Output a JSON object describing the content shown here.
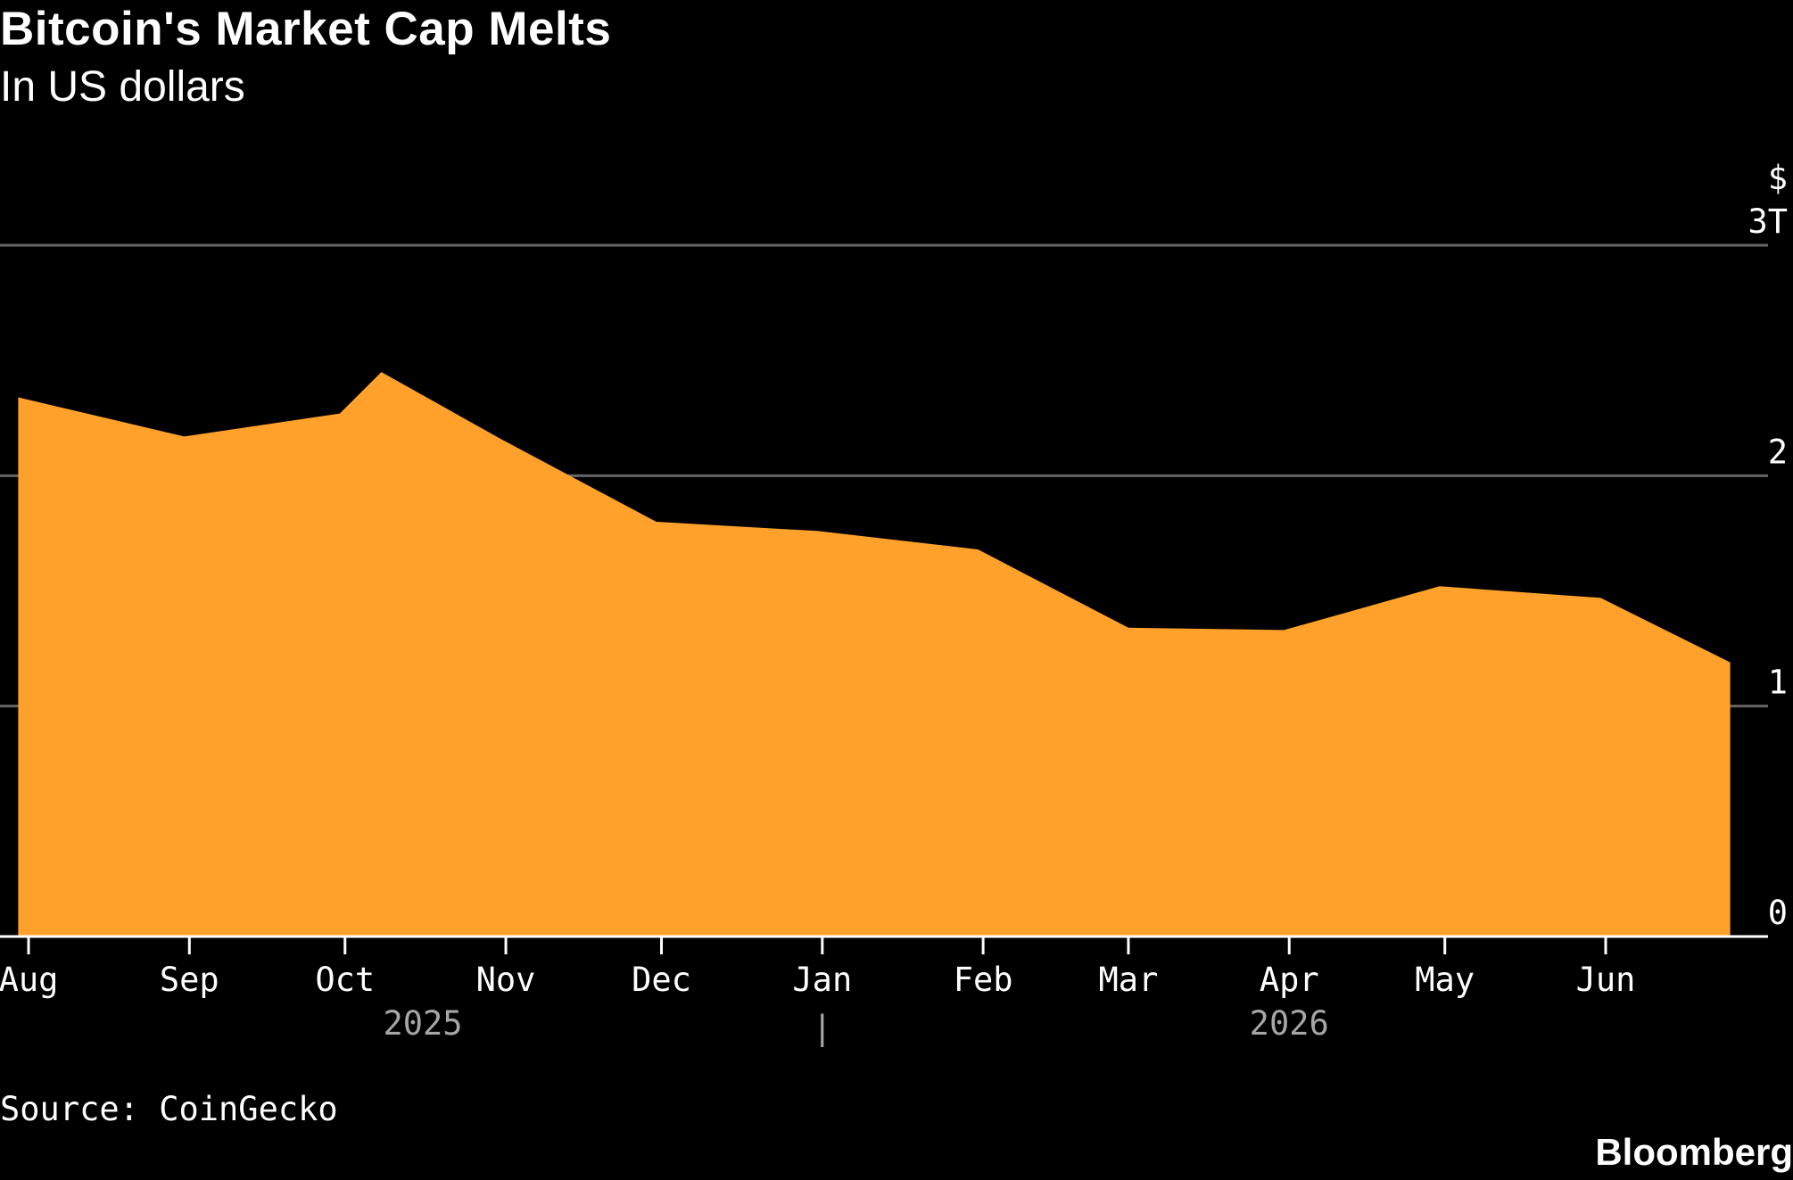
{
  "title": "Bitcoin's Market Cap Melts",
  "subtitle": "In US dollars",
  "source": "Source: CoinGecko",
  "brand": "Bloomberg",
  "colors": {
    "background": "#000000",
    "area": "#FFA12B",
    "grid": "#666666",
    "axis": "#FFFFFF",
    "year_label": "#A6A6A6"
  },
  "chart_data": {
    "type": "area",
    "title": "Bitcoin's Market Cap Melts",
    "subtitle": "In US dollars",
    "ylabel": "",
    "y_unit": "$",
    "y_axis_position": "right",
    "ylim": [
      0,
      3
    ],
    "yticks": [
      {
        "value": 0,
        "label": "0"
      },
      {
        "value": 1,
        "label": "1"
      },
      {
        "value": 2,
        "label": "2"
      },
      {
        "value": 3,
        "label": "3T"
      }
    ],
    "grid": true,
    "legend": "none",
    "x_ticks": [
      {
        "date": "2025-08-01",
        "label": "Aug"
      },
      {
        "date": "2025-09-01",
        "label": "Sep"
      },
      {
        "date": "2025-10-01",
        "label": "Oct"
      },
      {
        "date": "2025-11-01",
        "label": "Nov"
      },
      {
        "date": "2025-12-01",
        "label": "Dec"
      },
      {
        "date": "2026-01-01",
        "label": "Jan"
      },
      {
        "date": "2026-02-01",
        "label": "Feb"
      },
      {
        "date": "2026-03-01",
        "label": "Mar"
      },
      {
        "date": "2026-04-01",
        "label": "Apr"
      },
      {
        "date": "2026-05-01",
        "label": "May"
      },
      {
        "date": "2026-06-01",
        "label": "Jun"
      }
    ],
    "year_labels": [
      {
        "label": "2025",
        "center_date": "2025-10-16"
      },
      {
        "label": "2026",
        "center_date": "2026-04-01"
      }
    ],
    "year_divider_date": "2026-01-01",
    "series": [
      {
        "x": [
          "2025-07-30",
          "2025-08-31",
          "2025-09-30",
          "2025-10-08",
          "2025-10-31",
          "2025-11-30",
          "2025-12-31",
          "2026-01-31",
          "2026-03-01",
          "2026-03-31",
          "2026-04-30",
          "2026-05-31",
          "2026-06-25"
        ],
        "y": [
          2.34,
          2.17,
          2.27,
          2.45,
          2.16,
          1.8,
          1.76,
          1.68,
          1.34,
          1.33,
          1.52,
          1.47,
          1.19
        ]
      }
    ]
  }
}
